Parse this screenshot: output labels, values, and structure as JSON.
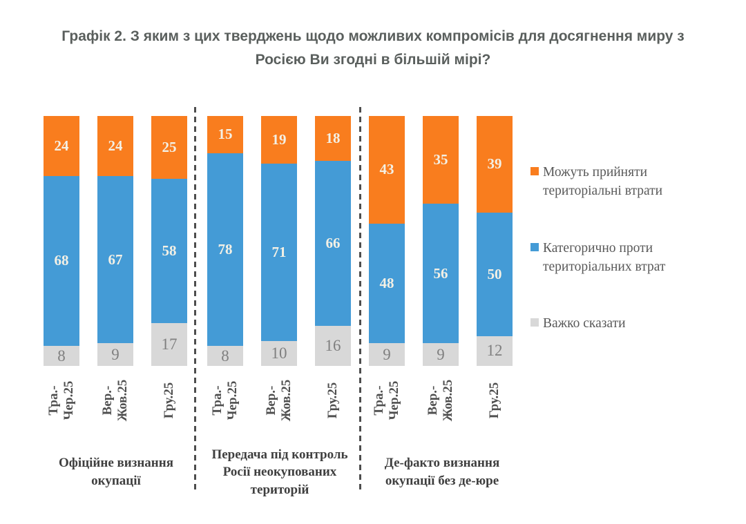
{
  "title": "Графік 2. З яким з цих тверджень щодо можливих компромісів для досягнення миру з Росією Ви згодні в більшій мірі?",
  "colors": {
    "may_accept": "#F97D1E",
    "against": "#449BD6",
    "hard_to_say": "#D8D8D8"
  },
  "legend": [
    {
      "key": "may_accept",
      "label": "Можуть прийняти територіальні втрати",
      "marker": "orange-square"
    },
    {
      "key": "against",
      "label": "Категорично проти територіальних втрат",
      "marker": "blue-square"
    },
    {
      "key": "hard_to_say",
      "label": "Важко сказати",
      "marker": "gray-square"
    }
  ],
  "chart_data": {
    "type": "bar",
    "variant": "100-percent-stacked-columns",
    "value_unit": "percent",
    "ylim": [
      0,
      100
    ],
    "grid": false,
    "legend_position": "right",
    "categories": [
      "Тра.-Чер.25",
      "Вер.-Жов.25",
      "Гру.25"
    ],
    "series_order_top_to_bottom": [
      "may_accept",
      "against",
      "hard_to_say"
    ],
    "series": [
      {
        "name": "Можуть прийняти територіальні втрати",
        "key": "may_accept",
        "color": "#F97D1E",
        "values_by_group": [
          [
            24,
            24,
            25
          ],
          [
            15,
            19,
            18
          ],
          [
            43,
            35,
            39
          ]
        ]
      },
      {
        "name": "Категорично проти територіальних втрат",
        "key": "against",
        "color": "#449BD6",
        "values_by_group": [
          [
            68,
            67,
            58
          ],
          [
            78,
            71,
            66
          ],
          [
            48,
            56,
            50
          ]
        ]
      },
      {
        "name": "Важко сказати",
        "key": "hard_to_say",
        "color": "#D8D8D8",
        "values_by_group": [
          [
            8,
            9,
            17
          ],
          [
            8,
            10,
            16
          ],
          [
            9,
            9,
            12
          ]
        ]
      }
    ],
    "groups": [
      {
        "label": "Офіційне визнання окупації",
        "bars": [
          {
            "category": "Тра.-\nЧер.25",
            "may_accept": 24,
            "against": 68,
            "hard_to_say": 8
          },
          {
            "category": "Вер.-\nЖов.25",
            "may_accept": 24,
            "against": 67,
            "hard_to_say": 9
          },
          {
            "category": "Гру.25",
            "may_accept": 25,
            "against": 58,
            "hard_to_say": 17
          }
        ]
      },
      {
        "label": "Передача під контроль Росії неокупованих територій",
        "bars": [
          {
            "category": "Тра.-\nЧер.25",
            "may_accept": 15,
            "against": 78,
            "hard_to_say": 8
          },
          {
            "category": "Вер.-\nЖов.25",
            "may_accept": 19,
            "against": 71,
            "hard_to_say": 10
          },
          {
            "category": "Гру.25",
            "may_accept": 18,
            "against": 66,
            "hard_to_say": 16
          }
        ]
      },
      {
        "label": "Де-факто визнання окупації без де-юре",
        "bars": [
          {
            "category": "Тра.-\nЧер.25",
            "may_accept": 43,
            "against": 48,
            "hard_to_say": 9
          },
          {
            "category": "Вер.-\nЖов.25",
            "may_accept": 35,
            "against": 56,
            "hard_to_say": 9
          },
          {
            "category": "Гру.25",
            "may_accept": 39,
            "against": 50,
            "hard_to_say": 12
          }
        ]
      }
    ]
  }
}
